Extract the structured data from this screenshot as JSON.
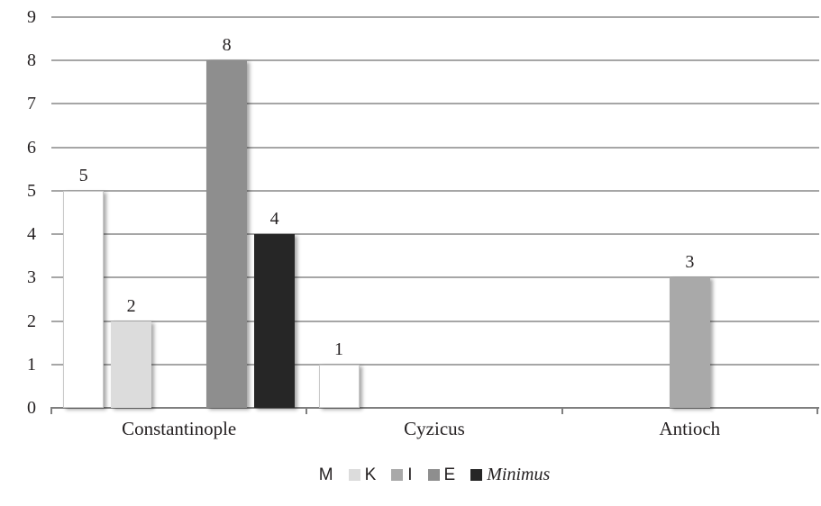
{
  "chart": {
    "background_color": "#ffffff",
    "gridline_color": "#a6a6a6",
    "axis_color": "#7f7f7f",
    "text_color": "#231f20"
  },
  "chart_data": {
    "type": "bar",
    "title": "",
    "xlabel": "",
    "ylabel": "",
    "categories": [
      "Constantinople",
      "Cyzicus",
      "Antioch"
    ],
    "series": [
      {
        "name": "M",
        "color": "#ffffff",
        "border": "#c9c9c9",
        "italic": false,
        "values": [
          5,
          1,
          0
        ]
      },
      {
        "name": "K",
        "color": "#dcdcdc",
        "border": "",
        "italic": false,
        "values": [
          2,
          0,
          0
        ]
      },
      {
        "name": "I",
        "color": "#a9a9a9",
        "border": "",
        "italic": false,
        "values": [
          0,
          0,
          3
        ]
      },
      {
        "name": "E",
        "color": "#8e8e8e",
        "border": "",
        "italic": false,
        "values": [
          8,
          0,
          0
        ]
      },
      {
        "name": "Minimus",
        "color": "#262626",
        "border": "",
        "italic": true,
        "values": [
          4,
          0,
          0
        ]
      }
    ],
    "ylim": [
      0,
      9
    ],
    "yticks": [
      0,
      1,
      2,
      3,
      4,
      5,
      6,
      7,
      8,
      9
    ],
    "grid": true,
    "legend_position": "bottom",
    "value_labels": true
  }
}
